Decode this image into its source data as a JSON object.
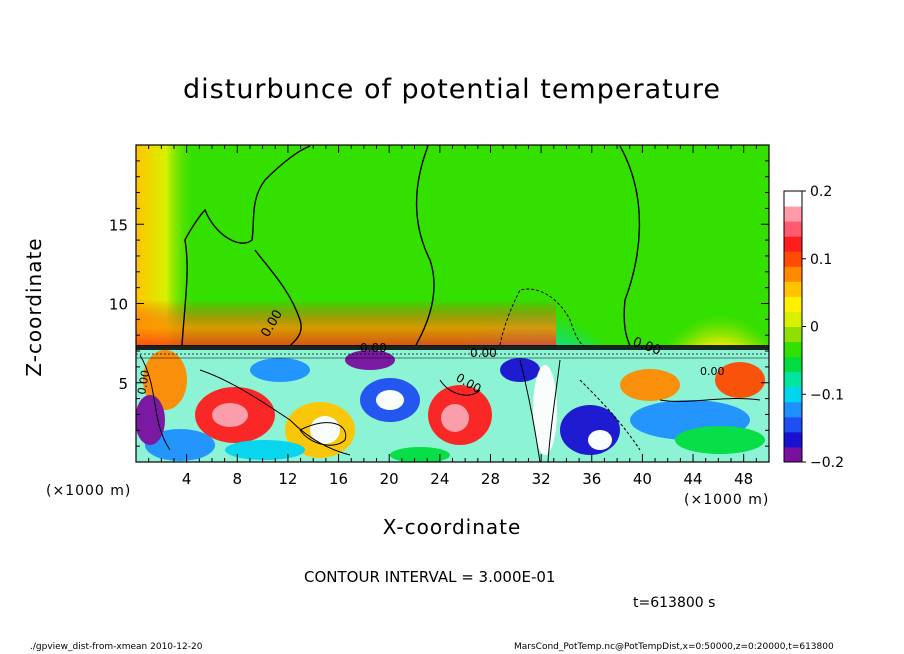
{
  "title": "disturbunce of potential temperature",
  "chart_data": {
    "type": "heatmap",
    "title": "disturbunce of potential temperature",
    "xlabel": "X-coordinate",
    "ylabel": "Z-coordinate",
    "x_unit_left": "(×1000 m)",
    "x_unit_right": "(×1000 m)",
    "xlim": [
      0,
      50
    ],
    "ylim": [
      0,
      20
    ],
    "x_ticks": [
      "4",
      "8",
      "12",
      "16",
      "20",
      "24",
      "28",
      "32",
      "36",
      "40",
      "44",
      "48"
    ],
    "x_tick_values": [
      4,
      8,
      12,
      16,
      20,
      24,
      28,
      32,
      36,
      40,
      44,
      48
    ],
    "y_ticks": [
      "5",
      "10",
      "15"
    ],
    "y_tick_values": [
      5,
      10,
      15
    ],
    "colorbar": {
      "range": [
        -0.2,
        0.2
      ],
      "tick_labels": [
        "0.2",
        "0.1",
        "0",
        "−0.1",
        "−0.2"
      ],
      "tick_values": [
        0.2,
        0.1,
        0,
        -0.1,
        -0.2
      ],
      "colors": [
        "#7a0fa0",
        "#1a10d0",
        "#1f4ef2",
        "#1e90ff",
        "#00d5f0",
        "#00e6a0",
        "#00dd40",
        "#33e000",
        "#8fe000",
        "#d8f000",
        "#fff000",
        "#ffc400",
        "#ff8a00",
        "#ff4a00",
        "#ff1e1e",
        "#ff5a6e",
        "#ff9aa8",
        "#ffffff"
      ]
    },
    "contour_labels": [
      "0.00",
      "0.00",
      "0.00",
      "0.00",
      "0.00",
      "0.00",
      "0.00"
    ]
  },
  "contour_interval": "CONTOUR INTERVAL = 3.000E-01",
  "time_label": "t=613800 s",
  "footer_left": "./gpview_dist-from-xmean  2010-12-20",
  "footer_right": "MarsCond_PotTemp.nc@PotTempDist,x=0:50000,z=0:20000,t=613800"
}
